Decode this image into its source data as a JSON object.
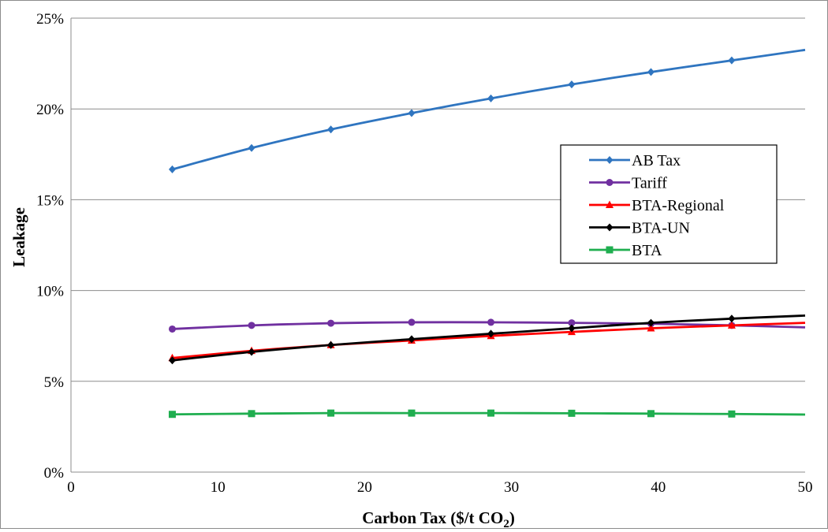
{
  "chart_data": {
    "type": "line",
    "title": "",
    "xlabel": "Carbon Tax ($/t CO",
    "xlabel_subscript": "2",
    "xlabel_suffix": ")",
    "ylabel": "Leakage",
    "xlim": [
      0,
      50
    ],
    "ylim": [
      0,
      0.25
    ],
    "x_ticks": [
      0,
      10,
      20,
      30,
      40,
      50
    ],
    "x_tick_labels": [
      "0",
      "10",
      "20",
      "30",
      "40",
      "50"
    ],
    "y_ticks": [
      0,
      0.05,
      0.1,
      0.15,
      0.2,
      0.25
    ],
    "y_tick_labels": [
      "0%",
      "5%",
      "10%",
      "15%",
      "20%",
      "25%"
    ],
    "grid": "horizontal",
    "legend_position": "right-middle",
    "x": [
      6.9,
      12.3,
      17.7,
      23.2,
      28.6,
      34.1,
      39.5,
      45.0
    ],
    "series": [
      {
        "name": "AB Tax",
        "color": "#2f75c0",
        "marker": "diamond",
        "values": [
          0.1667,
          0.1785,
          0.1887,
          0.1977,
          0.2058,
          0.2135,
          0.2203,
          0.2267
        ],
        "end_value": 0.2325
      },
      {
        "name": "Tariff",
        "color": "#7030a0",
        "marker": "circle",
        "values": [
          0.0788,
          0.0808,
          0.082,
          0.0825,
          0.0825,
          0.0822,
          0.0817,
          0.0808
        ],
        "end_value": 0.0797
      },
      {
        "name": "BTA-Regional",
        "color": "#ff0000",
        "marker": "triangle",
        "values": [
          0.0628,
          0.0668,
          0.07,
          0.0725,
          0.075,
          0.0772,
          0.0792,
          0.0808
        ],
        "end_value": 0.0822
      },
      {
        "name": "BTA-UN",
        "color": "#000000",
        "marker": "diamond",
        "values": [
          0.0615,
          0.0662,
          0.07,
          0.0732,
          0.0762,
          0.0792,
          0.0822,
          0.0845
        ],
        "end_value": 0.0862
      },
      {
        "name": "BTA",
        "color": "#1fae4f",
        "marker": "square",
        "values": [
          0.0318,
          0.0322,
          0.0325,
          0.0325,
          0.0325,
          0.0324,
          0.0322,
          0.032
        ],
        "end_value": 0.0317
      }
    ]
  }
}
